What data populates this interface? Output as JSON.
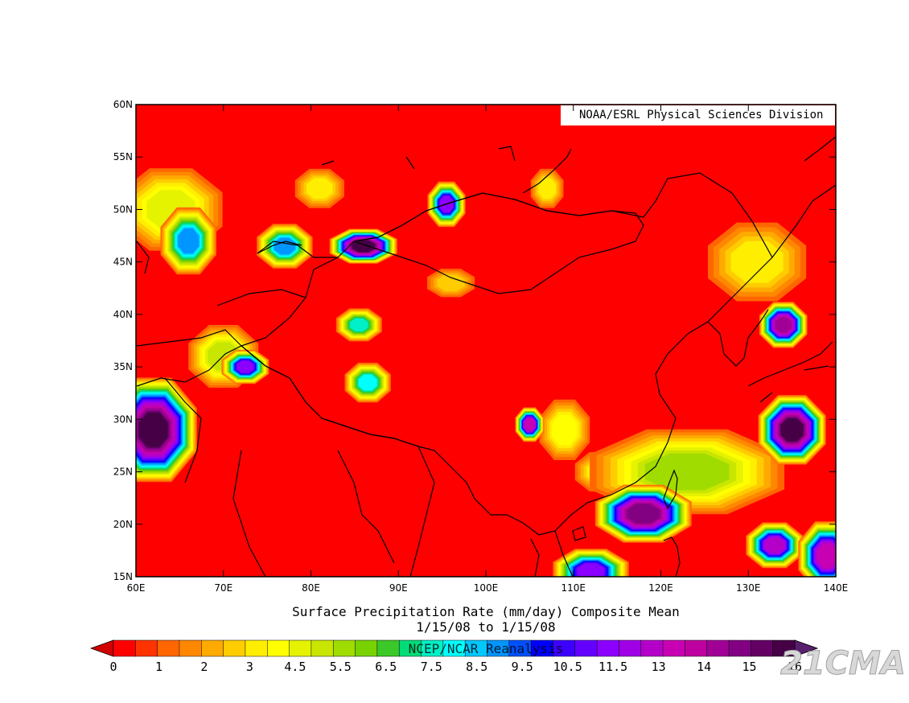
{
  "credit": "NOAA/ESRL Physical Sciences Division",
  "title": {
    "line1": "Surface Precipitation Rate (mm/day) Composite Mean",
    "line2": "1/15/08  to 1/15/08"
  },
  "source_label": "NCEP/NCAR Reanalysis",
  "watermark": "21CMA",
  "map": {
    "lon_range": [
      60,
      140
    ],
    "lat_range": [
      15,
      60
    ],
    "lon_ticks": [
      {
        "value": 60,
        "label": "60E"
      },
      {
        "value": 70,
        "label": "70E"
      },
      {
        "value": 80,
        "label": "80E"
      },
      {
        "value": 90,
        "label": "90E"
      },
      {
        "value": 100,
        "label": "100E"
      },
      {
        "value": 110,
        "label": "110E"
      },
      {
        "value": 120,
        "label": "120E"
      },
      {
        "value": 130,
        "label": "130E"
      },
      {
        "value": 140,
        "label": "140E"
      }
    ],
    "lat_ticks": [
      {
        "value": 60,
        "label": "60N"
      },
      {
        "value": 55,
        "label": "55N"
      },
      {
        "value": 50,
        "label": "50N"
      },
      {
        "value": 45,
        "label": "45N"
      },
      {
        "value": 40,
        "label": "40N"
      },
      {
        "value": 35,
        "label": "35N"
      },
      {
        "value": 30,
        "label": "30N"
      },
      {
        "value": 25,
        "label": "25N"
      },
      {
        "value": 20,
        "label": "20N"
      },
      {
        "value": 15,
        "label": "15N"
      }
    ],
    "background_color": "#ff0000",
    "features": [
      {
        "name": "precip-max-west-pakistan",
        "lon": 62,
        "lat": 29,
        "peak": 16,
        "rx": 4.5,
        "ry": 4.5
      },
      {
        "name": "precip-max-south-china-sea",
        "lon": 118,
        "lat": 21,
        "peak": 15,
        "rx": 5,
        "ry": 2.5
      },
      {
        "name": "precip-max-japan",
        "lon": 135,
        "lat": 29,
        "peak": 16,
        "rx": 3.5,
        "ry": 3
      },
      {
        "name": "precip-max-balkhash",
        "lon": 86,
        "lat": 46.5,
        "peak": 16,
        "rx": 3.5,
        "ry": 1.5
      },
      {
        "name": "precip-max-korea",
        "lon": 134,
        "lat": 39,
        "peak": 14,
        "rx": 2.5,
        "ry": 2
      },
      {
        "name": "precip-max-philippine-sea",
        "lon": 133,
        "lat": 18,
        "peak": 12,
        "rx": 3,
        "ry": 2
      },
      {
        "name": "precip-max-philippines",
        "lon": 139,
        "lat": 17,
        "peak": 13,
        "rx": 3,
        "ry": 3
      },
      {
        "name": "precip-max-indochina",
        "lon": 112,
        "lat": 15.5,
        "peak": 11,
        "rx": 4,
        "ry": 2
      },
      {
        "name": "precip-max-sichuan",
        "lon": 105,
        "lat": 29.5,
        "peak": 13,
        "rx": 1.5,
        "ry": 1.5
      },
      {
        "name": "precip-max-pamir",
        "lon": 72.5,
        "lat": 35,
        "peak": 11,
        "rx": 2.5,
        "ry": 1.5
      },
      {
        "name": "precip-max-mongolia",
        "lon": 95.5,
        "lat": 50.5,
        "peak": 11,
        "rx": 2,
        "ry": 2
      },
      {
        "name": "precip-max-kazakh-west",
        "lon": 66,
        "lat": 47,
        "peak": 8.5,
        "rx": 3,
        "ry": 3
      },
      {
        "name": "precip-max-kazakh-east",
        "lon": 77,
        "lat": 46.5,
        "peak": 8.5,
        "rx": 3,
        "ry": 2
      },
      {
        "name": "precip-max-tarim",
        "lon": 85.5,
        "lat": 39,
        "peak": 7,
        "rx": 2.5,
        "ry": 1.5
      },
      {
        "name": "precip-max-tibet",
        "lon": 86.5,
        "lat": 33.5,
        "peak": 7.5,
        "rx": 2.5,
        "ry": 1.8
      },
      {
        "name": "precip-max-east-china",
        "lon": 123,
        "lat": 25,
        "peak": 5,
        "rx": 11,
        "ry": 4
      },
      {
        "name": "precip-max-west-siberia",
        "lon": 64,
        "lat": 50,
        "peak": 4,
        "rx": 6,
        "ry": 4
      },
      {
        "name": "precip-max-hindukush",
        "lon": 70,
        "lat": 36,
        "peak": 4.5,
        "rx": 4,
        "ry": 3
      },
      {
        "name": "precip-max-yangtze",
        "lon": 109,
        "lat": 29,
        "peak": 3.5,
        "rx": 3,
        "ry": 3
      },
      {
        "name": "precip-max-northeast",
        "lon": 131,
        "lat": 45,
        "peak": 3,
        "rx": 6,
        "ry": 4
      },
      {
        "name": "precip-max-baikal",
        "lon": 107,
        "lat": 52,
        "peak": 3,
        "rx": 2,
        "ry": 2
      },
      {
        "name": "precip-max-altai",
        "lon": 81,
        "lat": 52,
        "peak": 3,
        "rx": 3,
        "ry": 2
      },
      {
        "name": "precip-max-gobi",
        "lon": 96,
        "lat": 43,
        "peak": 2.5,
        "rx": 3,
        "ry": 1.5
      },
      {
        "name": "precip-max-guangxi",
        "lon": 113,
        "lat": 25,
        "peak": 3,
        "rx": 3,
        "ry": 2
      }
    ]
  },
  "colorbar": {
    "labels": [
      "0",
      "1",
      "2",
      "3",
      "4.5",
      "5.5",
      "6.5",
      "7.5",
      "8.5",
      "9.5",
      "10.5",
      "11.5",
      "13",
      "14",
      "15",
      "16"
    ],
    "colors": [
      "#ff0000",
      "#ff3300",
      "#ff6600",
      "#ff8800",
      "#ffaa00",
      "#ffcc00",
      "#ffee00",
      "#ffff00",
      "#e5f200",
      "#c8e600",
      "#a0dc00",
      "#78d200",
      "#3cc828",
      "#00dc78",
      "#00f0c8",
      "#00ffff",
      "#00c8ff",
      "#0096ff",
      "#0050ff",
      "#0000ff",
      "#3c00ff",
      "#6400ff",
      "#8c00ff",
      "#a000e6",
      "#b400c8",
      "#c800b4",
      "#be00a0",
      "#a00096",
      "#820082",
      "#640064",
      "#460046"
    ],
    "under_color": "#d20000",
    "over_color": "#5a1e6e"
  }
}
